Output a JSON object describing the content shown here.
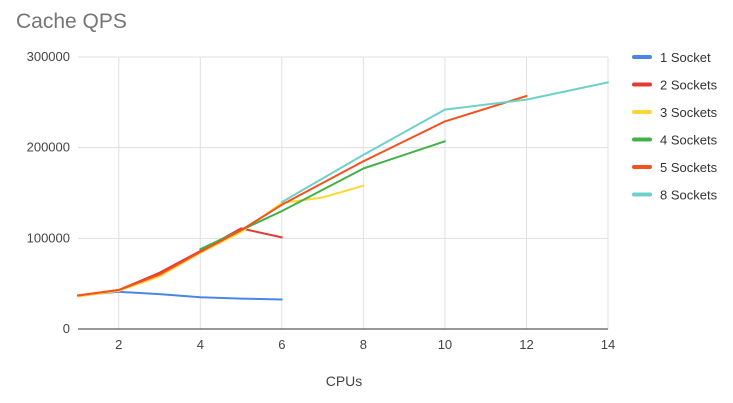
{
  "chart_data": {
    "type": "line",
    "title": "Cache QPS",
    "xlabel": "CPUs",
    "ylabel": "",
    "xlim": [
      1,
      14
    ],
    "ylim": [
      0,
      300000
    ],
    "x_ticks": [
      2,
      4,
      6,
      8,
      10,
      12,
      14
    ],
    "y_ticks": [
      0,
      100000,
      200000,
      300000
    ],
    "grid": true,
    "legend_position": "right",
    "series": [
      {
        "name": "1 Socket",
        "color": "#4a86e8",
        "x": [
          1,
          2,
          3,
          4,
          5,
          6
        ],
        "y": [
          37000,
          41000,
          38500,
          35000,
          33500,
          32500
        ]
      },
      {
        "name": "2 Sockets",
        "color": "#e53935",
        "x": [
          1,
          2,
          3,
          4,
          5,
          6
        ],
        "y": [
          37000,
          43000,
          62000,
          86000,
          111000,
          101000
        ]
      },
      {
        "name": "3 Sockets",
        "color": "#fdd835",
        "x": [
          1,
          2,
          3,
          4,
          5,
          6,
          7,
          8
        ],
        "y": [
          36000,
          42000,
          58000,
          84000,
          107000,
          139000,
          145000,
          158000
        ]
      },
      {
        "name": "4 Sockets",
        "color": "#43b047",
        "x": [
          4,
          6,
          8,
          10
        ],
        "y": [
          88000,
          130000,
          177000,
          207000
        ]
      },
      {
        "name": "5 Sockets",
        "color": "#f4511e",
        "x": [
          1,
          2,
          3,
          4,
          5,
          6,
          8,
          10,
          12
        ],
        "y": [
          37000,
          43000,
          60000,
          85000,
          109000,
          137000,
          185000,
          229000,
          257000
        ]
      },
      {
        "name": "8 Sockets",
        "color": "#6ed1c8",
        "x": [
          6,
          8,
          10,
          12,
          14
        ],
        "y": [
          140000,
          192000,
          242000,
          253000,
          272000
        ]
      }
    ]
  }
}
